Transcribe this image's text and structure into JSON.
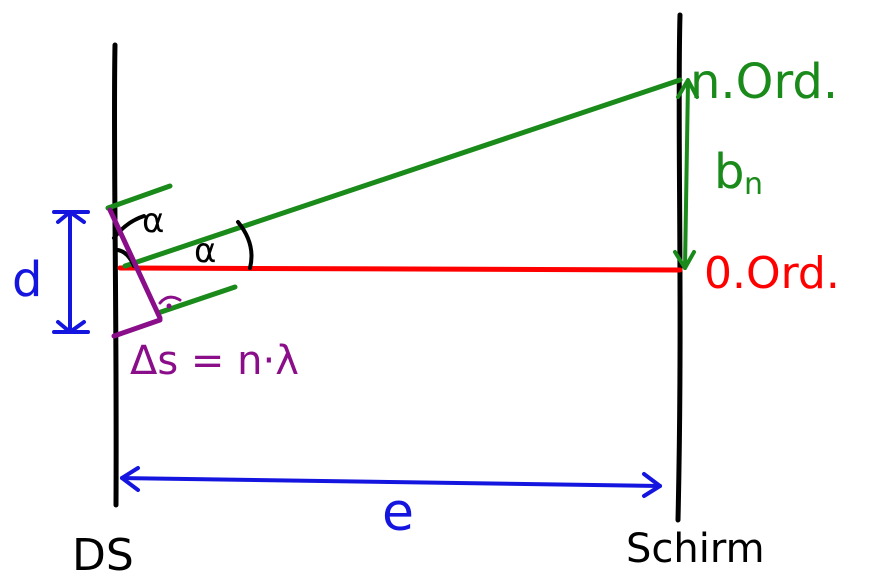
{
  "labels": {
    "order_n": "n.Ord.",
    "order_zero": "0.Ord.",
    "b_n_base": "b",
    "b_n_sub": "n",
    "d": "d",
    "e": "e",
    "alpha_top": "α",
    "alpha_mid": "α",
    "delta_s": "Δs = n·λ",
    "ds": "DS",
    "schirm": "Schirm"
  },
  "colors": {
    "screen_lines": "#000000",
    "rays": "#1a8a1a",
    "zero_order": "#ff0000",
    "dimensions": "#1515e0",
    "path_difference": "#8a0d8a"
  },
  "icons": {
    "right_angle_mark": "right-angle-icon",
    "arrowheads": "arrowhead-icon"
  }
}
